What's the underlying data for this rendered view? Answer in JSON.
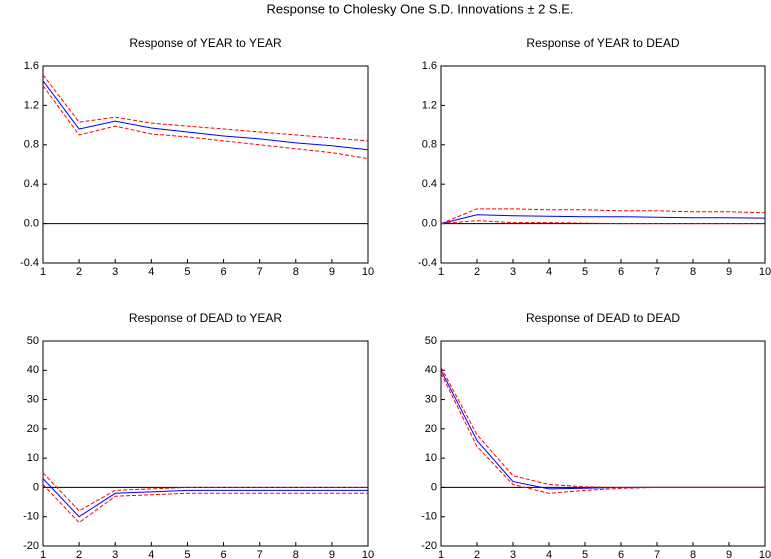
{
  "title": "Response to Cholesky One S.D. Innovations ± 2 S.E.",
  "chart_data": [
    {
      "type": "line",
      "title": "Response of YEAR to YEAR",
      "x": [
        1,
        2,
        3,
        4,
        5,
        6,
        7,
        8,
        9,
        10
      ],
      "xlim": [
        1,
        10
      ],
      "xticks": [
        1,
        2,
        3,
        4,
        5,
        6,
        7,
        8,
        9,
        10
      ],
      "ylim": [
        -0.4,
        1.6
      ],
      "yticks": [
        -0.4,
        {
          "value": 0,
          "label": "0.0"
        },
        0.4,
        0.8,
        1.2,
        1.6
      ],
      "zero_line": true,
      "series": [
        {
          "color": "#0000ff",
          "dashed": false,
          "values": [
            1.45,
            0.96,
            1.04,
            0.97,
            0.93,
            0.89,
            0.86,
            0.82,
            0.79,
            0.75
          ]
        },
        {
          "color": "#ff0000",
          "dashed": true,
          "values": [
            1.51,
            1.03,
            1.08,
            1.02,
            0.99,
            0.96,
            0.93,
            0.9,
            0.87,
            0.84
          ]
        },
        {
          "color": "#ff0000",
          "dashed": true,
          "values": [
            1.4,
            0.9,
            0.99,
            0.91,
            0.88,
            0.84,
            0.8,
            0.76,
            0.72,
            0.66
          ]
        }
      ]
    },
    {
      "type": "line",
      "title": "Response of YEAR to DEAD",
      "x": [
        1,
        2,
        3,
        4,
        5,
        6,
        7,
        8,
        9,
        10
      ],
      "xlim": [
        1,
        10
      ],
      "xticks": [
        1,
        2,
        3,
        4,
        5,
        6,
        7,
        8,
        9,
        10
      ],
      "ylim": [
        -0.4,
        1.6
      ],
      "yticks": [
        -0.4,
        {
          "value": 0,
          "label": "0.0"
        },
        0.4,
        0.8,
        1.2,
        1.6
      ],
      "zero_line": true,
      "series": [
        {
          "color": "#0000ff",
          "dashed": false,
          "values": [
            0,
            0.09,
            0.08,
            0.075,
            0.07,
            0.07,
            0.065,
            0.06,
            0.06,
            0.055
          ]
        },
        {
          "color": "#ff0000",
          "dashed": true,
          "values": [
            0,
            0.15,
            0.15,
            0.14,
            0.14,
            0.13,
            0.13,
            0.12,
            0.12,
            0.11
          ]
        },
        {
          "color": "#ff0000",
          "dashed": true,
          "values": [
            0,
            0.03,
            0.01,
            0.01,
            0.005,
            0,
            0,
            0,
            0,
            0
          ]
        }
      ]
    },
    {
      "type": "line",
      "title": "Response of DEAD to YEAR",
      "x": [
        1,
        2,
        3,
        4,
        5,
        6,
        7,
        8,
        9,
        10
      ],
      "xlim": [
        1,
        10
      ],
      "xticks": [
        1,
        2,
        3,
        4,
        5,
        6,
        7,
        8,
        9,
        10
      ],
      "ylim": [
        -20,
        50
      ],
      "yticks": [
        -20,
        -10,
        0,
        10,
        20,
        30,
        40,
        50
      ],
      "zero_line": true,
      "series": [
        {
          "color": "#0000ff",
          "dashed": false,
          "values": [
            3,
            -10,
            -2,
            -1.5,
            -1,
            -1,
            -1,
            -1,
            -1,
            -1
          ]
        },
        {
          "color": "#ff0000",
          "dashed": true,
          "values": [
            5,
            -8,
            -1,
            -0.5,
            0,
            0,
            0,
            0,
            0,
            0
          ]
        },
        {
          "color": "#ff0000",
          "dashed": true,
          "values": [
            1,
            -12,
            -3,
            -2.5,
            -2,
            -2,
            -2,
            -2,
            -2,
            -2
          ]
        }
      ]
    },
    {
      "type": "line",
      "title": "Response of DEAD to DEAD",
      "x": [
        1,
        2,
        3,
        4,
        5,
        6,
        7,
        8,
        9,
        10
      ],
      "xlim": [
        1,
        10
      ],
      "xticks": [
        1,
        2,
        3,
        4,
        5,
        6,
        7,
        8,
        9,
        10
      ],
      "ylim": [
        -20,
        50
      ],
      "yticks": [
        -20,
        -10,
        0,
        10,
        20,
        30,
        40,
        50
      ],
      "zero_line": true,
      "series": [
        {
          "color": "#0000ff",
          "dashed": false,
          "values": [
            40,
            16,
            2,
            -0.5,
            -0.3,
            0,
            0,
            0,
            0,
            0
          ]
        },
        {
          "color": "#ff0000",
          "dashed": true,
          "values": [
            41,
            18,
            4,
            1,
            0.2,
            0,
            0,
            0,
            0,
            0
          ]
        },
        {
          "color": "#ff0000",
          "dashed": true,
          "values": [
            39,
            14,
            1,
            -2,
            -1,
            -0.3,
            0,
            0,
            0,
            0
          ]
        }
      ]
    }
  ]
}
